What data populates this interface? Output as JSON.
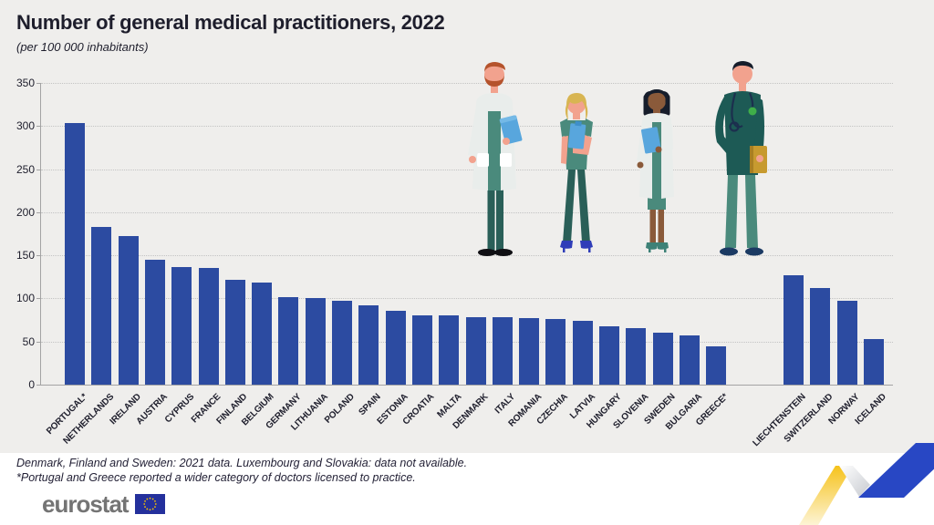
{
  "header": {
    "title": "Number of general medical practitioners, 2022",
    "subtitle": "(per 100 000 inhabitants)"
  },
  "chart_data": {
    "type": "bar",
    "title": "Number of general medical practitioners, 2022",
    "subtitle": "(per 100 000 inhabitants)",
    "ylabel": "",
    "xlabel": "",
    "ylim": [
      0,
      350
    ],
    "yticks": [
      0,
      50,
      100,
      150,
      200,
      250,
      300,
      350
    ],
    "grid": "horizontal dotted",
    "legend": "none",
    "bar_color": "#2c4ba1",
    "series": [
      {
        "country": "PORTUGAL*",
        "value": 303,
        "group": "eu"
      },
      {
        "country": "NETHERLANDS",
        "value": 183,
        "group": "eu"
      },
      {
        "country": "IRELAND",
        "value": 172,
        "group": "eu"
      },
      {
        "country": "AUSTRIA",
        "value": 145,
        "group": "eu"
      },
      {
        "country": "CYPRUS",
        "value": 136,
        "group": "eu"
      },
      {
        "country": "FRANCE",
        "value": 135,
        "group": "eu"
      },
      {
        "country": "FINLAND",
        "value": 122,
        "group": "eu"
      },
      {
        "country": "BELGIUM",
        "value": 118,
        "group": "eu"
      },
      {
        "country": "GERMANY",
        "value": 102,
        "group": "eu"
      },
      {
        "country": "LITHUANIA",
        "value": 100,
        "group": "eu"
      },
      {
        "country": "POLAND",
        "value": 97,
        "group": "eu"
      },
      {
        "country": "SPAIN",
        "value": 92,
        "group": "eu"
      },
      {
        "country": "ESTONIA",
        "value": 86,
        "group": "eu"
      },
      {
        "country": "CROATIA",
        "value": 80,
        "group": "eu"
      },
      {
        "country": "MALTA",
        "value": 80,
        "group": "eu"
      },
      {
        "country": "DENMARK",
        "value": 78,
        "group": "eu"
      },
      {
        "country": "ITALY",
        "value": 78,
        "group": "eu"
      },
      {
        "country": "ROMANIA",
        "value": 77,
        "group": "eu"
      },
      {
        "country": "CZECHIA",
        "value": 76,
        "group": "eu"
      },
      {
        "country": "LATVIA",
        "value": 74,
        "group": "eu"
      },
      {
        "country": "HUNGARY",
        "value": 68,
        "group": "eu"
      },
      {
        "country": "SLOVENIA",
        "value": 66,
        "group": "eu"
      },
      {
        "country": "SWEDEN",
        "value": 60,
        "group": "eu"
      },
      {
        "country": "BULGARIA",
        "value": 57,
        "group": "eu"
      },
      {
        "country": "GREECE*",
        "value": 44,
        "group": "eu"
      },
      {
        "country": "LIECHTENSTEIN",
        "value": 127,
        "group": "efta"
      },
      {
        "country": "SWITZERLAND",
        "value": 112,
        "group": "efta"
      },
      {
        "country": "NORWAY",
        "value": 97,
        "group": "efta"
      },
      {
        "country": "ICELAND",
        "value": 53,
        "group": "efta"
      }
    ]
  },
  "footnotes": {
    "line1": "Denmark, Finland and Sweden: 2021 data. Luxembourg and Slovakia: data not available.",
    "line2": "*Portugal and Greece reported a wider category of doctors licensed to practice."
  },
  "footer": {
    "logo_text": "eurostat"
  },
  "decorations": {
    "illustration": "four medical practitioners standing",
    "palette": {
      "teal_light": "#4a8a7c",
      "teal_dark": "#1d5a55",
      "pants_teal": "#2a5f58",
      "coat_white": "#e9edeb",
      "skin_light": "#f2a28e",
      "skin_dark": "#8a5a3a",
      "hair_red": "#b5532c",
      "hair_blonde": "#d8b552",
      "hair_black": "#161d2b",
      "item_blue": "#58a6dd",
      "book_gold": "#c79a2f",
      "zigzag_yellow": "#f6c21b",
      "zigzag_blue": "#2847c4",
      "flag_blue": "#24309c",
      "flag_stars": "#f8c300"
    }
  }
}
